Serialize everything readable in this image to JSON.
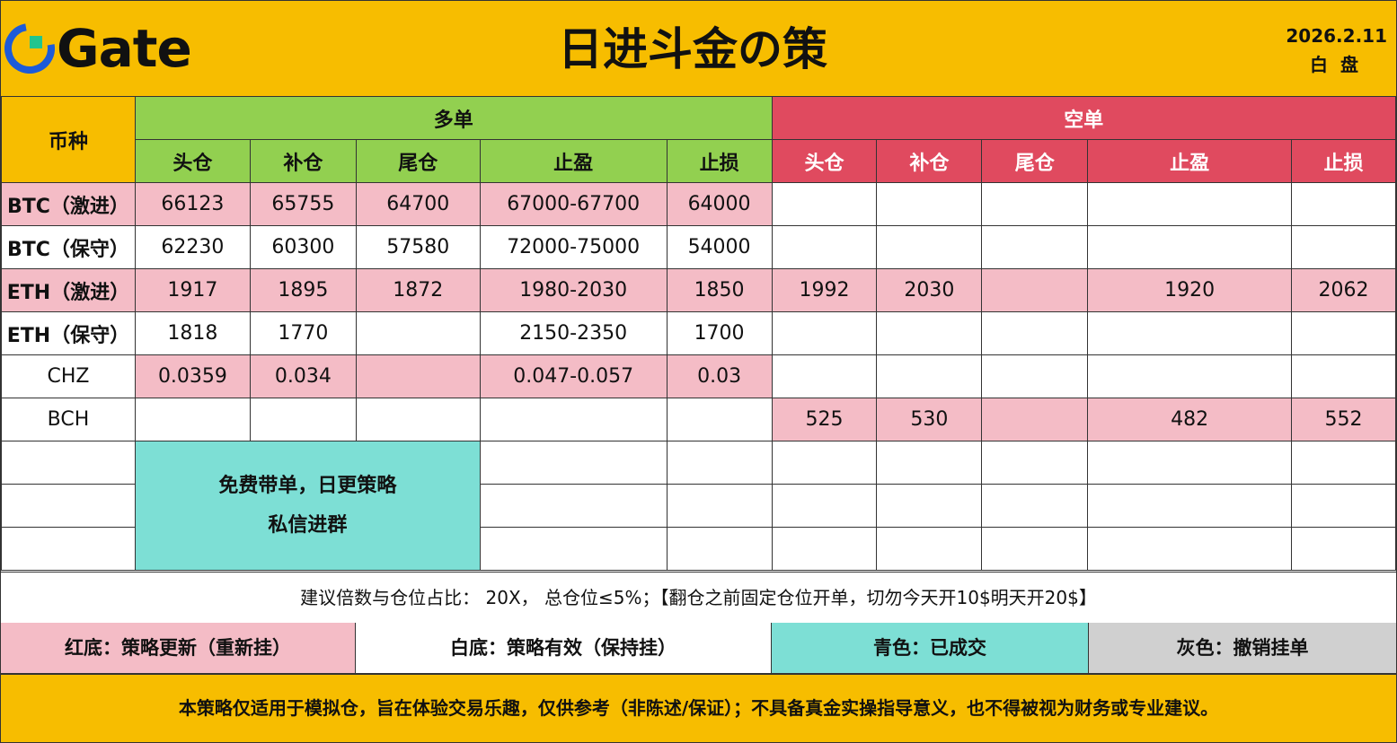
{
  "header": {
    "brand": "Gate",
    "title": "日进斗金の策",
    "date": "2026.2.11",
    "session": "白盘"
  },
  "colors": {
    "header_yellow": "#f7bd00",
    "long_green": "#92d050",
    "short_red": "#e04a5f",
    "update_pink": "#f4bcc6",
    "filled_teal": "#7ddfd5",
    "cancel_grey": "#d0d0d0"
  },
  "table": {
    "coin_header": "币种",
    "long_header": "多单",
    "short_header": "空单",
    "sub_headers": [
      "头仓",
      "补仓",
      "尾仓",
      "止盈",
      "止损"
    ],
    "rows": [
      {
        "coin": "BTC（激进）",
        "long": [
          "66123",
          "65755",
          "64700",
          "67000-67700",
          "64000"
        ],
        "short": [
          "",
          "",
          "",
          "",
          ""
        ]
      },
      {
        "coin": "BTC（保守）",
        "long": [
          "62230",
          "60300",
          "57580",
          "72000-75000",
          "54000"
        ],
        "short": [
          "",
          "",
          "",
          "",
          ""
        ]
      },
      {
        "coin": "ETH（激进）",
        "long": [
          "1917",
          "1895",
          "1872",
          "1980-2030",
          "1850"
        ],
        "short": [
          "1992",
          "2030",
          "",
          "1920",
          "2062"
        ]
      },
      {
        "coin": "ETH（保守）",
        "long": [
          "1818",
          "1770",
          "",
          "2150-2350",
          "1700"
        ],
        "short": [
          "",
          "",
          "",
          "",
          ""
        ]
      },
      {
        "coin": "CHZ",
        "long": [
          "0.0359",
          "0.034",
          "",
          "0.047-0.057",
          "0.03"
        ],
        "short": [
          "",
          "",
          "",
          "",
          ""
        ]
      },
      {
        "coin": "BCH",
        "long": [
          "",
          "",
          "",
          "",
          ""
        ],
        "short": [
          "525",
          "530",
          "",
          "482",
          "552"
        ]
      }
    ],
    "promo_line1": "免费带单，日更策略",
    "promo_line2": "私信进群"
  },
  "note": "建议倍数与仓位占比： 20X， 总仓位≤5%；【翻仓之前固定仓位开单，切勿今天开10$明天开20$】",
  "legend": {
    "red": "红底：策略更新（重新挂）",
    "white": "白底：策略有效（保持挂）",
    "teal": "青色：已成交",
    "grey": "灰色：撤销挂单"
  },
  "disclaimer": "本策略仅适用于模拟仓，旨在体验交易乐趣，仅供参考（非陈述/保证）；不具备真金实操指导意义，也不得被视为财务或专业建议。"
}
